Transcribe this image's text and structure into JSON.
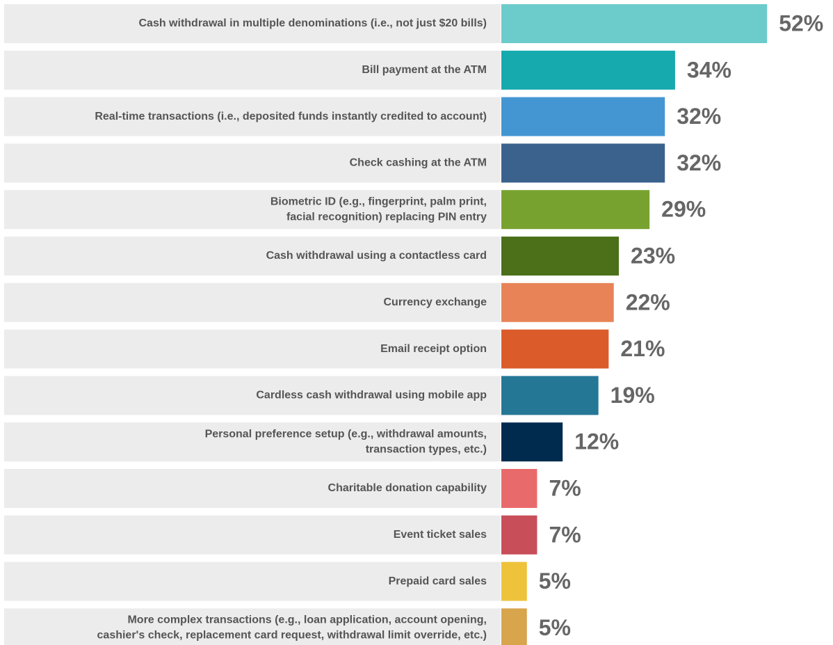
{
  "chart_data": {
    "type": "bar",
    "orientation": "horizontal",
    "categories": [
      [
        "Cash withdrawal in multiple denominations (i.e., not just $20 bills)"
      ],
      [
        "Bill payment at the ATM"
      ],
      [
        "Real-time transactions (i.e., deposited funds instantly credited to account)"
      ],
      [
        "Check cashing at the ATM"
      ],
      [
        "Biometric ID (e.g., fingerprint, palm print,",
        "facial recognition) replacing PIN entry"
      ],
      [
        "Cash withdrawal using a contactless card"
      ],
      [
        "Currency exchange"
      ],
      [
        "Email receipt option"
      ],
      [
        "Cardless cash withdrawal using mobile app"
      ],
      [
        "Personal preference setup (e.g., withdrawal amounts,",
        "transaction types, etc.)"
      ],
      [
        "Charitable donation capability"
      ],
      [
        "Event ticket sales"
      ],
      [
        "Prepaid card sales"
      ],
      [
        "More complex transactions (e.g., loan application, account opening,",
        "cashier's check, replacement card request, withdrawal limit override, etc.)"
      ]
    ],
    "values": [
      52,
      34,
      32,
      32,
      29,
      23,
      22,
      21,
      19,
      12,
      7,
      7,
      5,
      5
    ],
    "value_labels": [
      "52%",
      "34%",
      "32%",
      "32%",
      "29%",
      "23%",
      "22%",
      "21%",
      "19%",
      "12%",
      "7%",
      "7%",
      "5%",
      "5%"
    ],
    "colors": [
      "#6ccbcb",
      "#16a9ae",
      "#4496d3",
      "#3b618d",
      "#78a22f",
      "#4b7019",
      "#e78357",
      "#dc5b2b",
      "#247895",
      "#002b4f",
      "#e96a6b",
      "#c84e5a",
      "#eec23a",
      "#d8a44c"
    ]
  }
}
